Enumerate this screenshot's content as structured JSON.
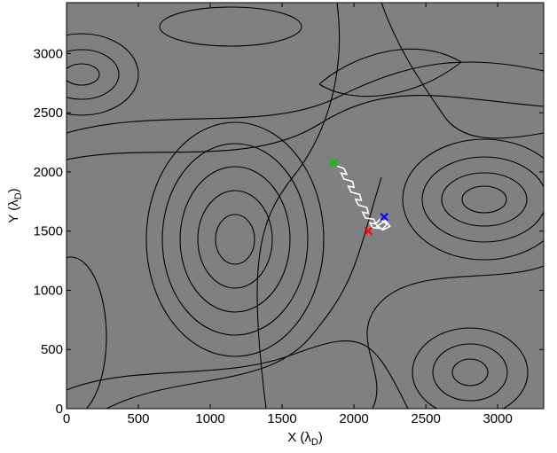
{
  "chart_data": {
    "type": "trajectory",
    "xlabel": [
      "X (λ",
      "D",
      ")"
    ],
    "ylabel": [
      "Y (λ",
      "D",
      ")"
    ],
    "xlim": [
      0,
      3320
    ],
    "ylim": [
      0,
      3430
    ],
    "xticks": [
      0,
      500,
      1000,
      1500,
      2000,
      2500,
      3000
    ],
    "yticks": [
      0,
      500,
      1000,
      1500,
      2000,
      2500,
      3000
    ],
    "background": "#808080",
    "trajectory": {
      "color": "#ffffff",
      "x": [
        1880,
        1930,
        1950,
        1910,
        1930,
        1990,
        2000,
        1960,
        1980,
        2040,
        2050,
        2010,
        2030,
        2090,
        2100,
        2060,
        2080,
        2140,
        2150,
        2110,
        2130,
        2200,
        2230,
        2180,
        2150,
        2200,
        2250,
        2220,
        2160,
        2190
      ],
      "y": [
        2050,
        2030,
        1980,
        1990,
        1940,
        1920,
        1870,
        1880,
        1830,
        1810,
        1760,
        1770,
        1720,
        1700,
        1650,
        1660,
        1610,
        1600,
        1560,
        1570,
        1530,
        1520,
        1560,
        1600,
        1560,
        1510,
        1540,
        1590,
        1540,
        1520
      ]
    },
    "markers": [
      {
        "x": 1860,
        "y": 2080,
        "color": "#00cc00"
      },
      {
        "x": 2100,
        "y": 1500,
        "color": "#ff0000"
      },
      {
        "x": 2210,
        "y": 1620,
        "color": "#0000ff"
      }
    ]
  }
}
